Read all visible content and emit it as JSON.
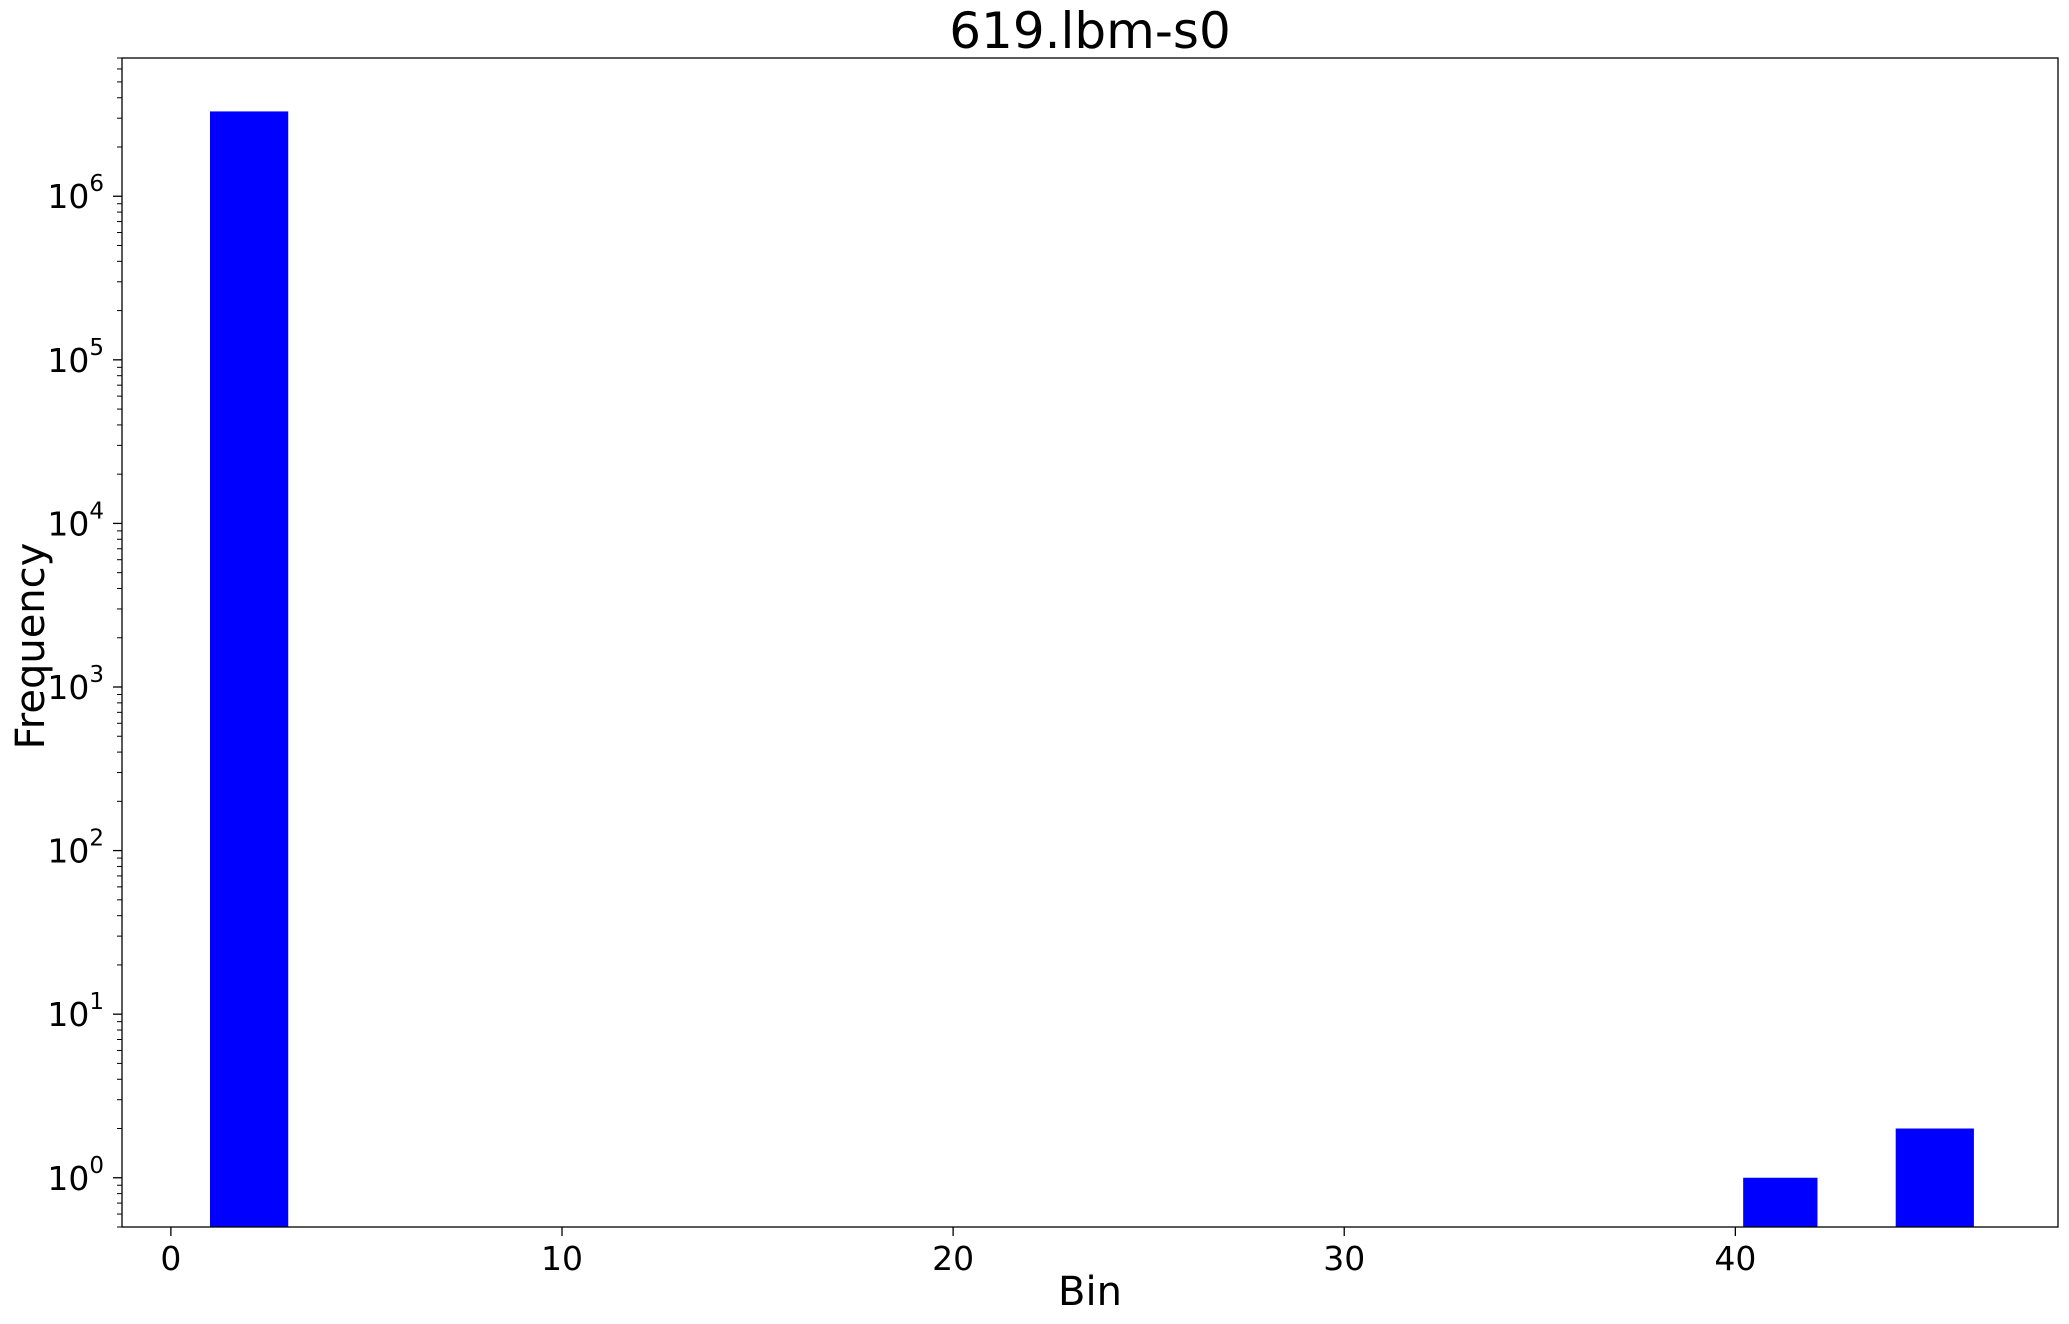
{
  "chart_data": {
    "type": "bar",
    "title": "619.lbm-s0",
    "xlabel": "Bin",
    "ylabel": "Frequency",
    "yscale": "log",
    "xlim": [
      -1.25,
      48.25
    ],
    "ylim": [
      0.5,
      7000000
    ],
    "xticks": [
      0,
      10,
      20,
      30,
      40
    ],
    "yticks": [
      {
        "base": "10",
        "exp": "0",
        "value": 1
      },
      {
        "base": "10",
        "exp": "1",
        "value": 10
      },
      {
        "base": "10",
        "exp": "2",
        "value": 100
      },
      {
        "base": "10",
        "exp": "3",
        "value": 1000
      },
      {
        "base": "10",
        "exp": "4",
        "value": 10000
      },
      {
        "base": "10",
        "exp": "5",
        "value": 100000
      },
      {
        "base": "10",
        "exp": "6",
        "value": 1000000
      }
    ],
    "bars": [
      {
        "x0": 1,
        "x1": 3,
        "value": 3300000
      },
      {
        "x0": 40.2,
        "x1": 42.1,
        "value": 1
      },
      {
        "x0": 44.1,
        "x1": 46.1,
        "value": 2
      }
    ],
    "bar_color": "#0000ff",
    "grid": false,
    "legend": "none"
  }
}
